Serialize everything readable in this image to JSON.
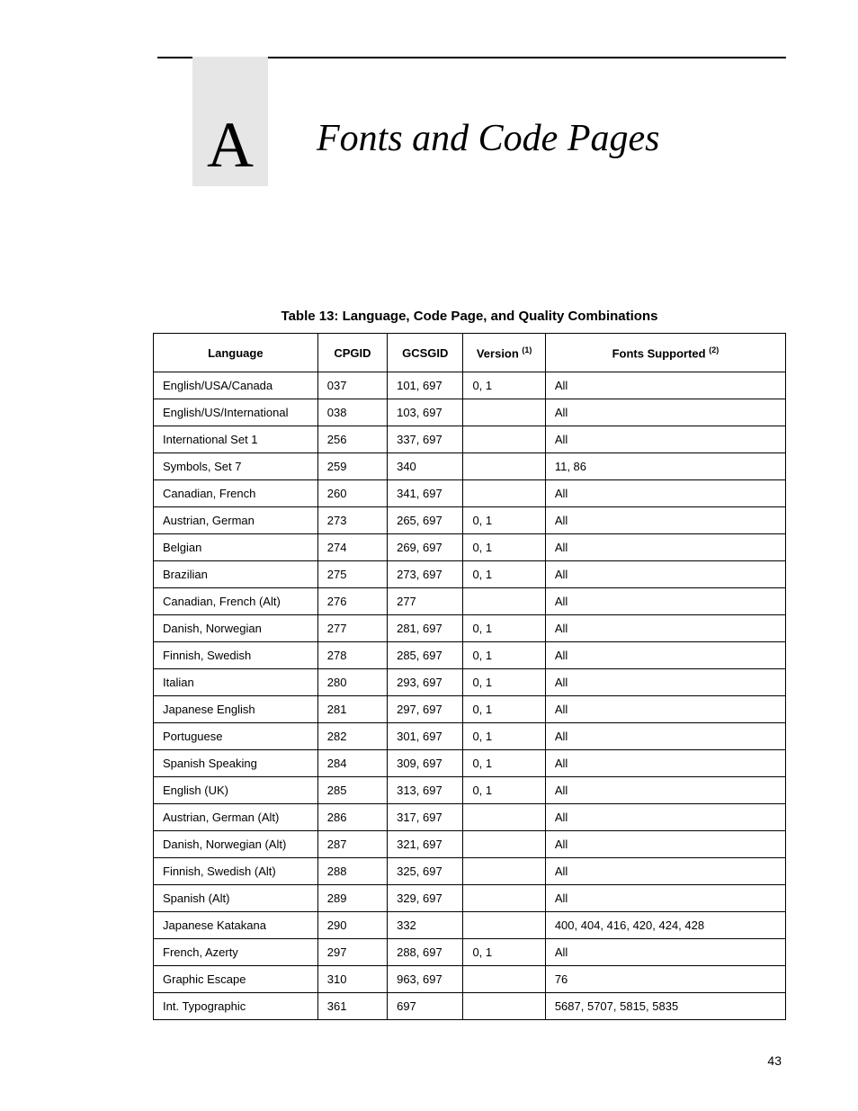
{
  "page": {
    "appendix_letter": "A",
    "chapter_title": "Fonts and Code Pages",
    "page_number": "43"
  },
  "table": {
    "caption": "Table 13: Language, Code Page, and Quality Combinations",
    "superscript_version": "(1)",
    "superscript_fonts": "(2)",
    "columns": {
      "language": "Language",
      "cpgid": "CPGID",
      "gcsgid": "GCSGID",
      "version": "Version ",
      "fonts": "Fonts Supported "
    },
    "rows": [
      {
        "language": "English/USA/Canada",
        "cpgid": "037",
        "gcsgid": "101, 697",
        "version": "0, 1",
        "fonts": "All"
      },
      {
        "language": "English/US/International",
        "cpgid": "038",
        "gcsgid": "103, 697",
        "version": "",
        "fonts": "All"
      },
      {
        "language": "International Set 1",
        "cpgid": "256",
        "gcsgid": "337, 697",
        "version": "",
        "fonts": "All"
      },
      {
        "language": "Symbols, Set 7",
        "cpgid": "259",
        "gcsgid": "340",
        "version": "",
        "fonts": "11, 86"
      },
      {
        "language": "Canadian, French",
        "cpgid": "260",
        "gcsgid": "341, 697",
        "version": "",
        "fonts": "All"
      },
      {
        "language": "Austrian, German",
        "cpgid": "273",
        "gcsgid": "265, 697",
        "version": "0, 1",
        "fonts": "All"
      },
      {
        "language": "Belgian",
        "cpgid": "274",
        "gcsgid": "269, 697",
        "version": "0, 1",
        "fonts": "All"
      },
      {
        "language": "Brazilian",
        "cpgid": "275",
        "gcsgid": "273, 697",
        "version": "0, 1",
        "fonts": "All"
      },
      {
        "language": "Canadian, French (Alt)",
        "cpgid": "276",
        "gcsgid": "277",
        "version": "",
        "fonts": "All"
      },
      {
        "language": "Danish, Norwegian",
        "cpgid": "277",
        "gcsgid": "281, 697",
        "version": "0, 1",
        "fonts": "All"
      },
      {
        "language": "Finnish, Swedish",
        "cpgid": "278",
        "gcsgid": "285, 697",
        "version": "0, 1",
        "fonts": "All"
      },
      {
        "language": "Italian",
        "cpgid": "280",
        "gcsgid": "293, 697",
        "version": "0, 1",
        "fonts": "All"
      },
      {
        "language": "Japanese English",
        "cpgid": "281",
        "gcsgid": "297, 697",
        "version": "0, 1",
        "fonts": "All"
      },
      {
        "language": "Portuguese",
        "cpgid": "282",
        "gcsgid": "301, 697",
        "version": "0, 1",
        "fonts": "All"
      },
      {
        "language": "Spanish Speaking",
        "cpgid": "284",
        "gcsgid": "309, 697",
        "version": "0, 1",
        "fonts": "All"
      },
      {
        "language": "English (UK)",
        "cpgid": "285",
        "gcsgid": "313, 697",
        "version": "0, 1",
        "fonts": "All"
      },
      {
        "language": "Austrian, German (Alt)",
        "cpgid": "286",
        "gcsgid": "317, 697",
        "version": "",
        "fonts": "All"
      },
      {
        "language": "Danish, Norwegian (Alt)",
        "cpgid": "287",
        "gcsgid": "321, 697",
        "version": "",
        "fonts": "All"
      },
      {
        "language": "Finnish, Swedish (Alt)",
        "cpgid": "288",
        "gcsgid": "325, 697",
        "version": "",
        "fonts": "All"
      },
      {
        "language": "Spanish (Alt)",
        "cpgid": "289",
        "gcsgid": "329, 697",
        "version": "",
        "fonts": "All"
      },
      {
        "language": "Japanese Katakana",
        "cpgid": "290",
        "gcsgid": "332",
        "version": "",
        "fonts": "400, 404, 416, 420, 424, 428"
      },
      {
        "language": "French, Azerty",
        "cpgid": "297",
        "gcsgid": "288, 697",
        "version": "0, 1",
        "fonts": "All"
      },
      {
        "language": "Graphic Escape",
        "cpgid": "310",
        "gcsgid": "963, 697",
        "version": "",
        "fonts": "76"
      },
      {
        "language": "Int. Typographic",
        "cpgid": "361",
        "gcsgid": "697",
        "version": "",
        "fonts": "5687, 5707, 5815, 5835"
      }
    ]
  }
}
